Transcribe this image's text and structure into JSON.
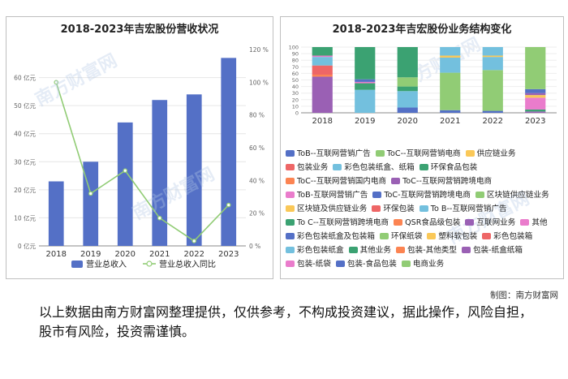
{
  "panel1": {
    "title": "2018-2023年吉宏股份营收状况",
    "watermark": "南方财富网",
    "legend": [
      "营业总收入",
      "营业总收入同比"
    ]
  },
  "panel2": {
    "title": "2018-2023年吉宏股份业务结构变化",
    "watermark": "南方财富网",
    "legend": [
      {
        "name": "ToB--互联网营销广告",
        "color": "#5470c6"
      },
      {
        "name": "ToC--互联网营销电商",
        "color": "#91cc75"
      },
      {
        "name": "供应链业务",
        "color": "#fac858"
      },
      {
        "name": "包装业务",
        "color": "#ee6666"
      },
      {
        "name": "彩色包装纸盒、纸箱",
        "color": "#73c0de"
      },
      {
        "name": "环保食品包装",
        "color": "#3ba272"
      },
      {
        "name": "ToC--互联网营销国内电商",
        "color": "#fc8452"
      },
      {
        "name": "ToC--互联网营销跨境电商",
        "color": "#9a60b4"
      },
      {
        "name": "ToB-互联网营销广告",
        "color": "#ea7ccc"
      },
      {
        "name": "ToC-互联网营销跨境电商",
        "color": "#5470c6"
      },
      {
        "name": "区块链供应链业务",
        "color": "#91cc75"
      },
      {
        "name": "区块链及供应链业务",
        "color": "#fac858"
      },
      {
        "name": "环保包装",
        "color": "#ee6666"
      },
      {
        "name": "To B--互联网营销广告",
        "color": "#73c0de"
      },
      {
        "name": "To C--互联网营销跨境电商",
        "color": "#3ba272"
      },
      {
        "name": "QSR食品级包装",
        "color": "#fc8452"
      },
      {
        "name": "互联网业务",
        "color": "#9a60b4"
      },
      {
        "name": "其他",
        "color": "#ea7ccc"
      },
      {
        "name": "彩色包装纸盒及包装箱",
        "color": "#5470c6"
      },
      {
        "name": "环保纸袋",
        "color": "#91cc75"
      },
      {
        "name": "塑料软包装",
        "color": "#fac858"
      },
      {
        "name": "彩色包装箱",
        "color": "#ee6666"
      },
      {
        "name": "彩色包装纸盒",
        "color": "#73c0de"
      },
      {
        "name": "其他业务",
        "color": "#3ba272"
      },
      {
        "name": "包装-其他类型",
        "color": "#fc8452"
      },
      {
        "name": "包装-纸盒纸箱",
        "color": "#9a60b4"
      },
      {
        "name": "包装-纸袋",
        "color": "#ea7ccc"
      },
      {
        "name": "包装-食品包装",
        "color": "#5470c6"
      },
      {
        "name": "电商业务",
        "color": "#91cc75"
      }
    ]
  },
  "credit": "制图：南方财富网",
  "disclaimer": "以上数据由南方财富网整理提供，仅供参考，不构成投资建议，据此操作，风险自担，股市有风险，投资需谨慎。",
  "chart_data": [
    {
      "type": "bar",
      "title": "2018-2023年吉宏股份营收状况",
      "categories": [
        "2018",
        "2019",
        "2020",
        "2021",
        "2022",
        "2023"
      ],
      "series": [
        {
          "name": "营业总收入",
          "axis": "left",
          "values": [
            23,
            30,
            44,
            52,
            54,
            67
          ]
        },
        {
          "name": "营业总收入同比",
          "axis": "right",
          "type": "line",
          "values": [
            100,
            32,
            46,
            17,
            3,
            25
          ]
        }
      ],
      "y_left": {
        "ticks": [
          "0 亿元",
          "10 亿元",
          "20 亿元",
          "30 亿元",
          "40 亿元",
          "50 亿元",
          "60 亿元"
        ],
        "lim": [
          0,
          70
        ]
      },
      "y_right": {
        "ticks": [
          "0 %",
          "20 %",
          "40 %",
          "60 %",
          "80 %",
          "100 %",
          "120 %"
        ],
        "lim": [
          0,
          120
        ]
      },
      "colors": {
        "bar": "#5470c6",
        "line": "#91cc75"
      }
    },
    {
      "type": "bar",
      "stacked": true,
      "title": "2018-2023年吉宏股份业务结构变化",
      "categories": [
        "2018",
        "2019",
        "2020",
        "2021",
        "2022",
        "2023"
      ],
      "y_ticks": [
        "0",
        "10",
        "20",
        "30",
        "40",
        "50",
        "60",
        "70",
        "80",
        "90",
        "100"
      ],
      "ylim": [
        0,
        100
      ],
      "stacks": [
        [
          {
            "name": "包装-纸盒纸箱",
            "value": 55,
            "color": "#9a60b4"
          },
          {
            "name": "包装-其他类型",
            "value": 3,
            "color": "#fc8452"
          },
          {
            "name": "包装业务",
            "value": 14,
            "color": "#ee6666"
          },
          {
            "name": "彩色包装纸盒、纸箱",
            "value": 13,
            "color": "#73c0de"
          },
          {
            "name": "其他",
            "value": 2,
            "color": "#ea7ccc"
          },
          {
            "name": "其他业务",
            "value": 13,
            "color": "#3ba272"
          }
        ],
        [
          {
            "name": "彩色包装纸盒、纸箱",
            "value": 35,
            "color": "#73c0de"
          },
          {
            "name": "环保食品包装",
            "value": 10,
            "color": "#3ba272"
          },
          {
            "name": "其他",
            "value": 2,
            "color": "#ea7ccc"
          },
          {
            "name": "ToB--互联网营销广告",
            "value": 4,
            "color": "#5470c6"
          },
          {
            "name": "互联网业务",
            "value": 49,
            "color": "#3ba272"
          }
        ],
        [
          {
            "name": "ToB--互联网营销广告",
            "value": 8,
            "color": "#5470c6"
          },
          {
            "name": "彩色包装纸盒、纸箱",
            "value": 25,
            "color": "#73c0de"
          },
          {
            "name": "环保食品包装",
            "value": 7,
            "color": "#3ba272"
          },
          {
            "name": "ToC--互联网营销电商",
            "value": 14,
            "color": "#91cc75"
          },
          {
            "name": "互联网业务",
            "value": 46,
            "color": "#3ba272"
          }
        ],
        [
          {
            "name": "ToB--互联网营销广告",
            "value": 4,
            "color": "#5470c6"
          },
          {
            "name": "ToC--互联网营销电商",
            "value": 57,
            "color": "#91cc75"
          },
          {
            "name": "彩色包装纸盒、纸箱",
            "value": 23,
            "color": "#73c0de"
          },
          {
            "name": "供应链业务",
            "value": 3,
            "color": "#fac858"
          },
          {
            "name": "彩色包装纸盒",
            "value": 13,
            "color": "#73c0de"
          }
        ],
        [
          {
            "name": "ToB--互联网营销广告",
            "value": 3,
            "color": "#5470c6"
          },
          {
            "name": "ToC--互联网营销电商",
            "value": 62,
            "color": "#91cc75"
          },
          {
            "name": "彩色包装纸盒、纸箱",
            "value": 20,
            "color": "#73c0de"
          },
          {
            "name": "供应链业务",
            "value": 2,
            "color": "#fac858"
          },
          {
            "name": "彩色包装纸盒",
            "value": 13,
            "color": "#73c0de"
          }
        ],
        [
          {
            "name": "包装-纸盒纸箱",
            "value": 2,
            "color": "#9a60b4"
          },
          {
            "name": "其他业务",
            "value": 3,
            "color": "#3ba272"
          },
          {
            "name": "包装-纸袋",
            "value": 18,
            "color": "#ea7ccc"
          },
          {
            "name": "区块链供应链业务",
            "value": 4,
            "color": "#fac858"
          },
          {
            "name": "互联网业务",
            "value": 3,
            "color": "#9a60b4"
          },
          {
            "name": "包装-食品包装",
            "value": 6,
            "color": "#5470c6"
          },
          {
            "name": "电商业务",
            "value": 64,
            "color": "#91cc75"
          }
        ]
      ]
    }
  ]
}
